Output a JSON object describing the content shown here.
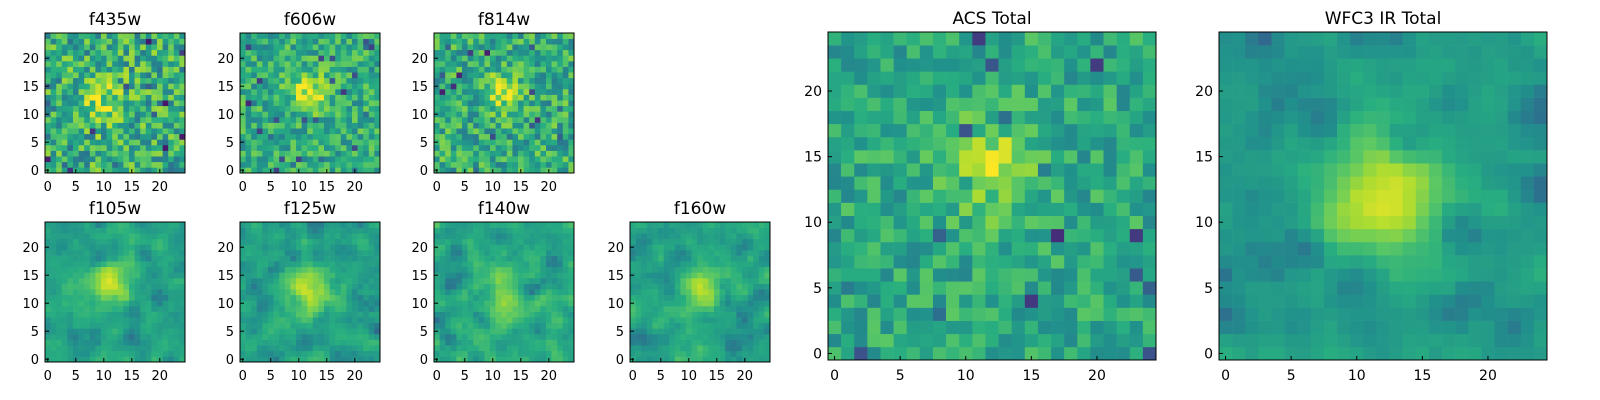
{
  "figure": {
    "background": "#ffffff"
  },
  "chart_data": [
    {
      "type": "heatmap",
      "title": "f435w",
      "colormap": "viridis",
      "grid_size": 25,
      "peak_center": [
        10,
        12
      ],
      "xticks": [
        "0",
        "5",
        "10",
        "15",
        "20"
      ],
      "yticks": [
        "0",
        "5",
        "10",
        "15",
        "20"
      ]
    },
    {
      "type": "heatmap",
      "title": "f606w",
      "colormap": "viridis",
      "grid_size": 25,
      "peak_center": [
        12,
        14
      ],
      "xticks": [
        "0",
        "5",
        "10",
        "15",
        "20"
      ],
      "yticks": [
        "0",
        "5",
        "10",
        "15",
        "20"
      ]
    },
    {
      "type": "heatmap",
      "title": "f814w",
      "colormap": "viridis",
      "grid_size": 25,
      "peak_center": [
        12,
        14
      ],
      "xticks": [
        "0",
        "5",
        "10",
        "15",
        "20"
      ],
      "yticks": [
        "0",
        "5",
        "10",
        "15",
        "20"
      ]
    },
    {
      "type": "heatmap",
      "title": "f105w",
      "colormap": "viridis",
      "grid_size": 25,
      "peak_center": [
        11,
        13
      ],
      "xticks": [
        "0",
        "5",
        "10",
        "15",
        "20"
      ],
      "yticks": [
        "0",
        "5",
        "10",
        "15",
        "20"
      ]
    },
    {
      "type": "heatmap",
      "title": "f125w",
      "colormap": "viridis",
      "grid_size": 25,
      "peak_center": [
        12,
        12
      ],
      "xticks": [
        "0",
        "5",
        "10",
        "15",
        "20"
      ],
      "yticks": [
        "0",
        "5",
        "10",
        "15",
        "20"
      ]
    },
    {
      "type": "heatmap",
      "title": "f140w",
      "colormap": "viridis",
      "grid_size": 25,
      "peak_center": [
        12,
        11
      ],
      "xticks": [
        "0",
        "5",
        "10",
        "15",
        "20"
      ],
      "yticks": [
        "0",
        "5",
        "10",
        "15",
        "20"
      ]
    },
    {
      "type": "heatmap",
      "title": "f160w",
      "colormap": "viridis",
      "grid_size": 25,
      "peak_center": [
        12,
        12
      ],
      "xticks": [
        "0",
        "5",
        "10",
        "15",
        "20"
      ],
      "yticks": [
        "0",
        "5",
        "10",
        "15",
        "20"
      ]
    },
    {
      "type": "heatmap",
      "title": "ACS Total",
      "colormap": "viridis",
      "grid_size": 25,
      "peak_center": [
        12,
        14
      ],
      "xticks": [
        "0",
        "5",
        "10",
        "15",
        "20"
      ],
      "yticks": [
        "0",
        "5",
        "10",
        "15",
        "20"
      ]
    },
    {
      "type": "heatmap",
      "title": "WFC3 IR Total",
      "colormap": "viridis",
      "grid_size": 25,
      "peak_center": [
        12,
        12
      ],
      "xticks": [
        "0",
        "5",
        "10",
        "15",
        "20"
      ],
      "yticks": [
        "0",
        "5",
        "10",
        "15",
        "20"
      ]
    }
  ]
}
